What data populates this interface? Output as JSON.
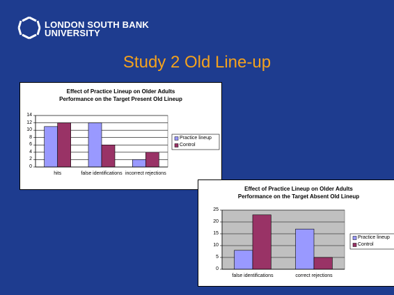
{
  "slide": {
    "logo": [
      "LONDON SOUTH BANK",
      "UNIVERSITY"
    ],
    "title": "Study 2 Old Line-up"
  },
  "chart_data": [
    {
      "type": "bar",
      "title": [
        "Effect of Practice Lineup on Older Adults",
        "Performance on the Target Present Old Lineup"
      ],
      "categories": [
        "hits",
        "false identifications",
        "incorrect rejections"
      ],
      "series": [
        {
          "name": "Practice lineup",
          "color": "#9999ff",
          "values": [
            11,
            12,
            2
          ]
        },
        {
          "name": "Control",
          "color": "#993366",
          "values": [
            12,
            6,
            4
          ]
        }
      ],
      "ylim": [
        0,
        14
      ],
      "yticks": [
        0,
        2,
        4,
        6,
        8,
        10,
        12,
        14
      ],
      "grid": true,
      "plot_color": "#ffffff",
      "legend": "right"
    },
    {
      "type": "bar",
      "title": [
        "Effect of Practice Lineup on Older Adults",
        "Performance on the Target Absent Old Lineup"
      ],
      "categories": [
        "false identifications",
        "correct rejections"
      ],
      "series": [
        {
          "name": "Practice lineup",
          "color": "#9999ff",
          "values": [
            8,
            17
          ]
        },
        {
          "name": "Control",
          "color": "#993366",
          "values": [
            23,
            5
          ]
        }
      ],
      "ylim": [
        0,
        25
      ],
      "yticks": [
        0,
        5,
        10,
        15,
        20,
        25
      ],
      "grid": true,
      "plot_color": "#c0c0c0",
      "legend": "right"
    }
  ]
}
